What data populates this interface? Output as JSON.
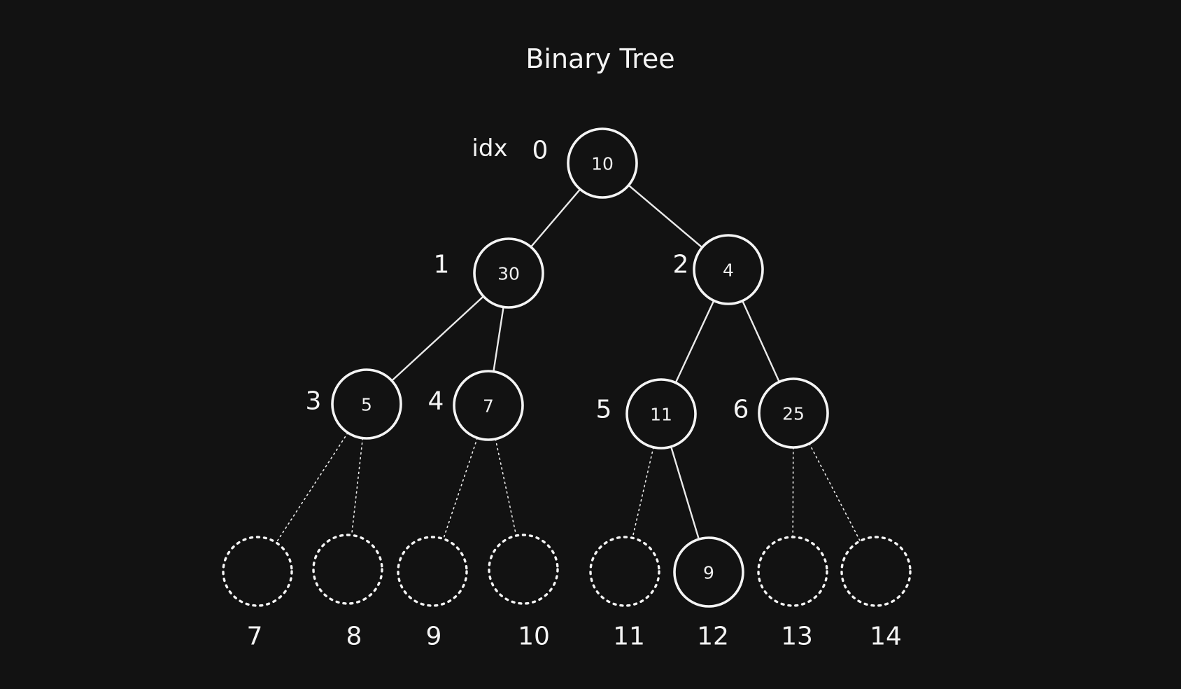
{
  "title": "Binary Tree",
  "index_prefix": "idx",
  "nodes": [
    {
      "index": "0",
      "value": "10"
    },
    {
      "index": "1",
      "value": "30"
    },
    {
      "index": "2",
      "value": "4"
    },
    {
      "index": "3",
      "value": "5"
    },
    {
      "index": "4",
      "value": "7"
    },
    {
      "index": "5",
      "value": "11"
    },
    {
      "index": "6",
      "value": "25"
    },
    {
      "index": "7",
      "value": ""
    },
    {
      "index": "8",
      "value": ""
    },
    {
      "index": "9",
      "value": ""
    },
    {
      "index": "10",
      "value": ""
    },
    {
      "index": "11",
      "value": ""
    },
    {
      "index": "12",
      "value": "9"
    },
    {
      "index": "13",
      "value": ""
    },
    {
      "index": "14",
      "value": ""
    }
  ],
  "edges": [
    {
      "from": 0,
      "to": 1,
      "style": "solid"
    },
    {
      "from": 0,
      "to": 2,
      "style": "solid"
    },
    {
      "from": 1,
      "to": 3,
      "style": "solid"
    },
    {
      "from": 1,
      "to": 4,
      "style": "solid"
    },
    {
      "from": 2,
      "to": 5,
      "style": "solid"
    },
    {
      "from": 2,
      "to": 6,
      "style": "solid"
    },
    {
      "from": 3,
      "to": 7,
      "style": "dotted"
    },
    {
      "from": 3,
      "to": 8,
      "style": "dotted"
    },
    {
      "from": 4,
      "to": 9,
      "style": "dotted"
    },
    {
      "from": 4,
      "to": 10,
      "style": "dotted"
    },
    {
      "from": 5,
      "to": 11,
      "style": "dotted"
    },
    {
      "from": 5,
      "to": 12,
      "style": "solid"
    },
    {
      "from": 6,
      "to": 13,
      "style": "dotted"
    },
    {
      "from": 6,
      "to": 14,
      "style": "dotted"
    }
  ]
}
